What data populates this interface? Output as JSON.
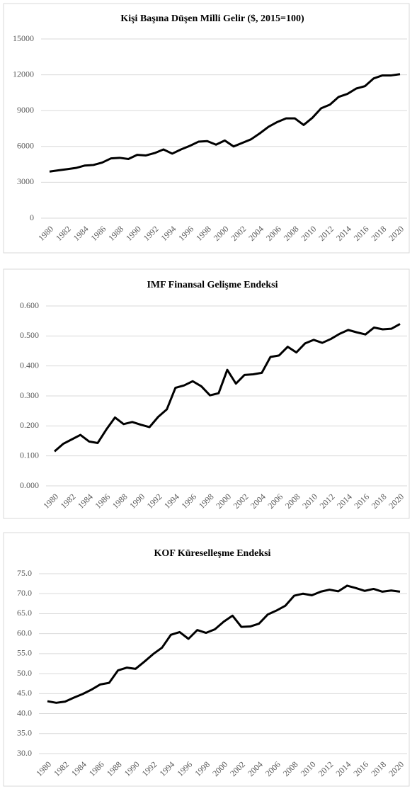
{
  "chart_data": [
    {
      "type": "line",
      "title": "Kişi Başına Düşen Milli Gelir ($, 2015=100)",
      "x": [
        1980,
        1981,
        1982,
        1983,
        1984,
        1985,
        1986,
        1987,
        1988,
        1989,
        1990,
        1991,
        1992,
        1993,
        1994,
        1995,
        1996,
        1997,
        1998,
        1999,
        2000,
        2001,
        2002,
        2003,
        2004,
        2005,
        2006,
        2007,
        2008,
        2009,
        2010,
        2011,
        2012,
        2013,
        2014,
        2015,
        2016,
        2017,
        2018,
        2019,
        2020
      ],
      "values": [
        3900,
        4000,
        4100,
        4200,
        4400,
        4450,
        4650,
        5000,
        5050,
        4950,
        5300,
        5250,
        5450,
        5750,
        5400,
        5750,
        6050,
        6400,
        6450,
        6150,
        6500,
        6000,
        6300,
        6600,
        7100,
        7650,
        8050,
        8350,
        8350,
        7800,
        8400,
        9200,
        9500,
        10150,
        10400,
        10850,
        11050,
        11700,
        11950,
        11950,
        12050
      ],
      "color": "#000000",
      "xlim": [
        1980,
        2020
      ],
      "xticks": [
        1980,
        1982,
        1984,
        1986,
        1988,
        1990,
        1992,
        1994,
        1996,
        1998,
        2000,
        2002,
        2004,
        2006,
        2008,
        2010,
        2012,
        2014,
        2016,
        2018,
        2020
      ],
      "ylim": [
        0,
        15000
      ],
      "yticks": [
        0,
        3000,
        6000,
        9000,
        12000,
        15000
      ],
      "grid": true
    },
    {
      "type": "line",
      "title": "IMF Finansal Gelişme Endeksi",
      "x": [
        1980,
        1981,
        1982,
        1983,
        1984,
        1985,
        1986,
        1987,
        1988,
        1989,
        1990,
        1991,
        1992,
        1993,
        1994,
        1995,
        1996,
        1997,
        1998,
        1999,
        2000,
        2001,
        2002,
        2003,
        2004,
        2005,
        2006,
        2007,
        2008,
        2009,
        2010,
        2011,
        2012,
        2013,
        2014,
        2015,
        2016,
        2017,
        2018,
        2019,
        2020
      ],
      "values": [
        0.115,
        0.14,
        0.155,
        0.17,
        0.148,
        0.143,
        0.188,
        0.228,
        0.206,
        0.213,
        0.204,
        0.196,
        0.23,
        0.255,
        0.327,
        0.335,
        0.349,
        0.332,
        0.302,
        0.309,
        0.387,
        0.341,
        0.37,
        0.372,
        0.377,
        0.43,
        0.435,
        0.464,
        0.445,
        0.475,
        0.487,
        0.477,
        0.49,
        0.507,
        0.52,
        0.512,
        0.505,
        0.528,
        0.522,
        0.524,
        0.54
      ],
      "color": "#000000",
      "xlim": [
        1980,
        2020
      ],
      "xticks": [
        1980,
        1982,
        1984,
        1986,
        1988,
        1990,
        1992,
        1994,
        1996,
        1998,
        2000,
        2002,
        2004,
        2006,
        2008,
        2010,
        2012,
        2014,
        2016,
        2018,
        2020
      ],
      "ylim": [
        0,
        0.6
      ],
      "yticks": [
        {
          "value": 0,
          "label": "0.000"
        },
        {
          "value": 0.1,
          "label": "0.100"
        },
        {
          "value": 0.2,
          "label": "0.200"
        },
        {
          "value": 0.3,
          "label": "0.300"
        },
        {
          "value": 0.4,
          "label": "0.400"
        },
        {
          "value": 0.5,
          "label": "0.500"
        },
        {
          "value": 0.6,
          "label": "0.600"
        }
      ],
      "grid": true
    },
    {
      "type": "line",
      "title": "KOF Küreselleşme Endeksi",
      "x": [
        1980,
        1981,
        1982,
        1983,
        1984,
        1985,
        1986,
        1987,
        1988,
        1989,
        1990,
        1991,
        1992,
        1993,
        1994,
        1995,
        1996,
        1997,
        1998,
        1999,
        2000,
        2001,
        2002,
        2003,
        2004,
        2005,
        2006,
        2007,
        2008,
        2009,
        2010,
        2011,
        2012,
        2013,
        2014,
        2015,
        2016,
        2017,
        2018,
        2019,
        2020
      ],
      "values": [
        43.1,
        42.7,
        43.0,
        44.0,
        44.9,
        46.0,
        47.3,
        47.7,
        50.8,
        51.5,
        51.2,
        53.0,
        54.9,
        56.5,
        59.7,
        60.4,
        58.7,
        60.9,
        60.2,
        61.1,
        63.0,
        64.5,
        61.7,
        61.8,
        62.5,
        64.8,
        65.8,
        67.0,
        69.5,
        70.0,
        69.6,
        70.5,
        71.0,
        70.6,
        72.0,
        71.4,
        70.7,
        71.2,
        70.5,
        70.8,
        70.5
      ],
      "color": "#000000",
      "xlim": [
        1980,
        2020
      ],
      "xticks": [
        1980,
        1982,
        1984,
        1986,
        1988,
        1990,
        1992,
        1994,
        1996,
        1998,
        2000,
        2002,
        2004,
        2006,
        2008,
        2010,
        2012,
        2014,
        2016,
        2018,
        2020
      ],
      "ylim": [
        30,
        75
      ],
      "yticks": [
        {
          "value": 30,
          "label": "30.0"
        },
        {
          "value": 35,
          "label": "35.0"
        },
        {
          "value": 40,
          "label": "40.0"
        },
        {
          "value": 45,
          "label": "45.0"
        },
        {
          "value": 50,
          "label": "50.0"
        },
        {
          "value": 55,
          "label": "55.0"
        },
        {
          "value": 60,
          "label": "60.0"
        },
        {
          "value": 65,
          "label": "65.0"
        },
        {
          "value": 70,
          "label": "70.0"
        },
        {
          "value": 75,
          "label": "75.0"
        }
      ],
      "grid": true
    }
  ]
}
